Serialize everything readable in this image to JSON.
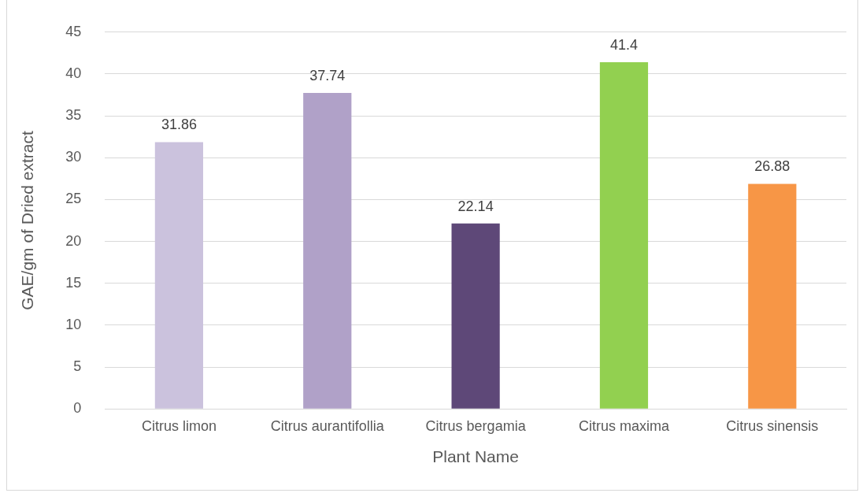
{
  "chart_data": {
    "type": "bar",
    "xlabel": "Plant Name",
    "ylabel": "GAE/gm of Dried extract",
    "categories": [
      "Citrus limon",
      "Citrus aurantifollia",
      "Citrus bergamia",
      "Citrus maxima",
      "Citrus sinensis"
    ],
    "values": [
      31.86,
      37.74,
      22.14,
      41.4,
      26.88
    ],
    "colors": [
      "#cbc2dd",
      "#b0a1c8",
      "#5e4878",
      "#92d050",
      "#f79646"
    ],
    "ylim": [
      0,
      45
    ],
    "yticks": [
      0,
      5,
      10,
      15,
      20,
      25,
      30,
      35,
      40,
      45
    ],
    "grid": "y",
    "data_labels": true,
    "legend": false
  }
}
